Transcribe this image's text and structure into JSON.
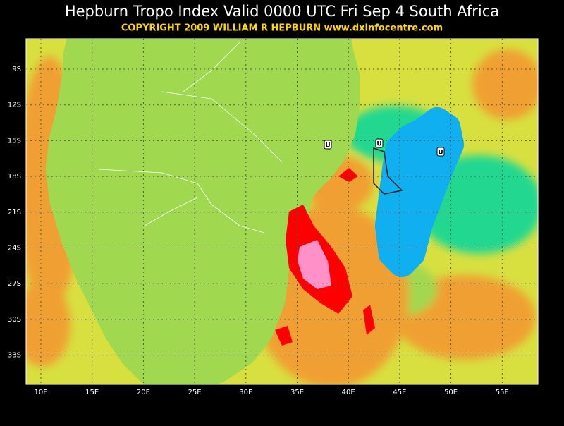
{
  "header": {
    "title": "Hepburn Tropo Index Valid 0000 UTC Fri Sep 4 South Africa",
    "subtitle": "COPYRIGHT 2009   WILLIAM R HEPBURN   www.dxinfocentre.com"
  },
  "map": {
    "lat_labels": [
      "9S",
      "12S",
      "15S",
      "18S",
      "21S",
      "24S",
      "27S",
      "30S",
      "33S"
    ],
    "lon_labels": [
      "10E",
      "15E",
      "20E",
      "25E",
      "30E",
      "35E",
      "40E",
      "45E",
      "50E",
      "55E"
    ],
    "markers": [
      "U",
      "U",
      "U"
    ]
  }
}
